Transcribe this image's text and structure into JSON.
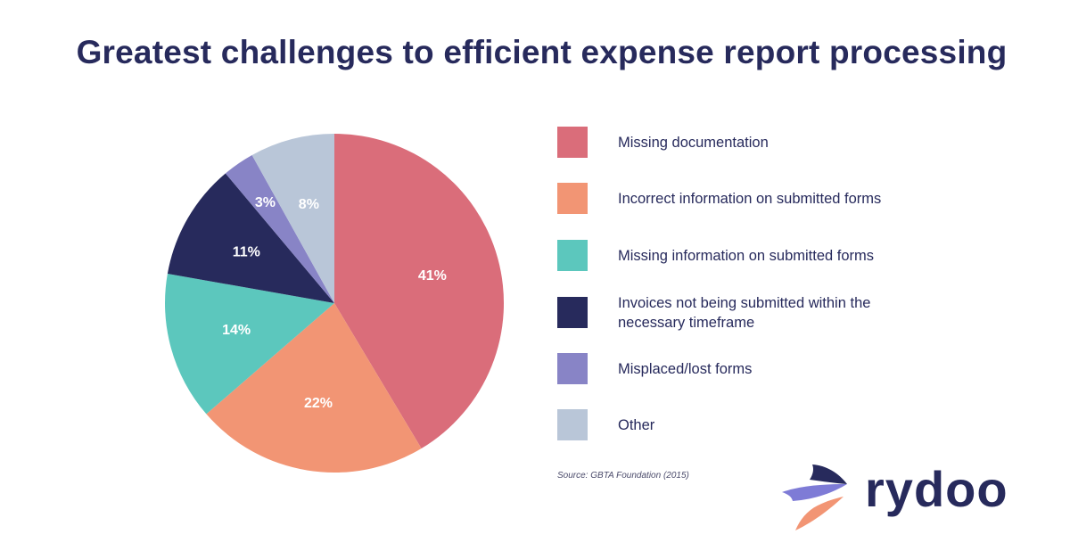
{
  "chart_data": {
    "type": "pie",
    "title": "Greatest challenges to efficient expense report processing",
    "categories": [
      "Missing documentation",
      "Incorrect information on submitted forms",
      "Missing information on submitted forms",
      "Invoices not being submitted within the necessary timeframe",
      "Misplaced/lost forms",
      "Other"
    ],
    "values": [
      41,
      22,
      14,
      11,
      3,
      8
    ],
    "value_labels": [
      "41%",
      "22%",
      "14%",
      "11%",
      "3%",
      "8%"
    ],
    "colors": [
      "#da6d7a",
      "#f29574",
      "#5cc7bd",
      "#272a5c",
      "#8884c6",
      "#b9c6d8"
    ],
    "legend_position": "right",
    "start_angle": "top, clockwise",
    "source": "Source: GBTA Foundation (2015)"
  },
  "brand": {
    "name": "rydoo",
    "colors": {
      "navy": "#272a5c",
      "purple": "#7e7bd6",
      "orange": "#f29574"
    },
    "icon": "rydoo-bird-logo-icon"
  }
}
